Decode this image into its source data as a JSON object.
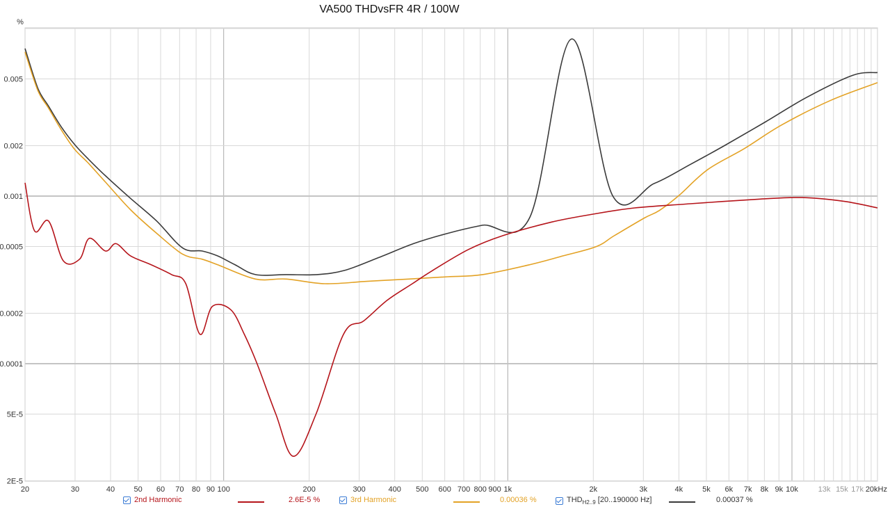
{
  "title": "VA500 THDvsFR 4R / 100W",
  "y_unit_label": "%",
  "colors": {
    "second_harmonic": "#b5141a",
    "third_harmonic": "#e3a225",
    "thd": "#3a3a3a",
    "grid": "#d9d9d9",
    "grid_major": "#c4c4c4",
    "checkbox": "#3a7bd5"
  },
  "legend": {
    "items": [
      {
        "label": "2nd Harmonic",
        "value": "2.6E-5 %",
        "checked": true,
        "color": "#b5141a"
      },
      {
        "label": "3rd Harmonic",
        "value": "0.00036 %",
        "checked": true,
        "color": "#e3a225"
      },
      {
        "label": "THD",
        "label_sub": "H2..9",
        "label_suffix": "[20..190000 Hz]",
        "value": "0.00037 %",
        "checked": true,
        "color": "#3a3a3a"
      }
    ]
  },
  "chart_data": {
    "type": "line",
    "title": "VA500 THDvsFR 4R / 100W",
    "xlabel": "Hz",
    "ylabel": "%",
    "xscale": "log",
    "yscale": "log",
    "xlim": [
      20,
      20000
    ],
    "ylim": [
      2e-05,
      0.01
    ],
    "grid": true,
    "legend_position": "bottom",
    "x_tick_labels": [
      {
        "f": 20,
        "label": "20"
      },
      {
        "f": 30,
        "label": "30"
      },
      {
        "f": 40,
        "label": "40"
      },
      {
        "f": 50,
        "label": "50"
      },
      {
        "f": 60,
        "label": "60"
      },
      {
        "f": 70,
        "label": "70"
      },
      {
        "f": 80,
        "label": "80"
      },
      {
        "f": 90,
        "label": "90"
      },
      {
        "f": 100,
        "label": "100"
      },
      {
        "f": 200,
        "label": "200"
      },
      {
        "f": 300,
        "label": "300"
      },
      {
        "f": 400,
        "label": "400"
      },
      {
        "f": 500,
        "label": "500"
      },
      {
        "f": 600,
        "label": "600"
      },
      {
        "f": 700,
        "label": "700"
      },
      {
        "f": 800,
        "label": "800"
      },
      {
        "f": 900,
        "label": "900"
      },
      {
        "f": 1000,
        "label": "1k"
      },
      {
        "f": 2000,
        "label": "2k"
      },
      {
        "f": 3000,
        "label": "3k"
      },
      {
        "f": 4000,
        "label": "4k"
      },
      {
        "f": 5000,
        "label": "5k"
      },
      {
        "f": 6000,
        "label": "6k"
      },
      {
        "f": 7000,
        "label": "7k"
      },
      {
        "f": 8000,
        "label": "8k"
      },
      {
        "f": 9000,
        "label": "9k"
      },
      {
        "f": 10000,
        "label": "10k"
      },
      {
        "f": 13000,
        "label": "13k",
        "dim": true
      },
      {
        "f": 15000,
        "label": "15k",
        "dim": true
      },
      {
        "f": 17000,
        "label": "17k",
        "dim": true
      },
      {
        "f": 20000,
        "label": "20kHz"
      }
    ],
    "y_tick_labels": [
      {
        "v": 0.005,
        "label": "0.005"
      },
      {
        "v": 0.002,
        "label": "0.002"
      },
      {
        "v": 0.001,
        "label": "0.001"
      },
      {
        "v": 0.0005,
        "label": "0.0005"
      },
      {
        "v": 0.0002,
        "label": "0.0002"
      },
      {
        "v": 0.0001,
        "label": "0.0001"
      },
      {
        "v": 5e-05,
        "label": "5E-5"
      },
      {
        "v": 2e-05,
        "label": "2E-5"
      }
    ],
    "series": [
      {
        "name": "THD H2..9 [20..190000 Hz]",
        "color": "#3a3a3a",
        "points": [
          [
            20,
            0.0076
          ],
          [
            22.2,
            0.00439
          ],
          [
            24.2,
            0.00344
          ],
          [
            26.9,
            0.00257
          ],
          [
            29.9,
            0.00203
          ],
          [
            33.2,
            0.00168
          ],
          [
            38.4,
            0.00132
          ],
          [
            47.0,
            0.00097
          ],
          [
            58.1,
            0.00071
          ],
          [
            71.8,
            0.00049
          ],
          [
            84.1,
            0.00047
          ],
          [
            95.1,
            0.00044
          ],
          [
            109.5,
            0.00039
          ],
          [
            129.4,
            0.00034
          ],
          [
            166.0,
            0.00034
          ],
          [
            213.1,
            0.00034
          ],
          [
            266.3,
            0.00036
          ],
          [
            352.0,
            0.00043
          ],
          [
            465.6,
            0.00052
          ],
          [
            615.6,
            0.0006
          ],
          [
            814.3,
            0.00067
          ],
          [
            1197,
            0.00075
          ],
          [
            1675,
            0.00866
          ],
          [
            2343,
            0.001
          ],
          [
            3279,
            0.00119
          ],
          [
            4373,
            0.00154
          ],
          [
            5784,
            0.002
          ],
          [
            8093,
            0.00278
          ],
          [
            11320,
            0.0039
          ],
          [
            16380,
            0.00526
          ],
          [
            20000,
            0.00546
          ]
        ]
      },
      {
        "name": "3rd Harmonic",
        "color": "#e3a225",
        "points": [
          [
            20,
            0.00725
          ],
          [
            22.2,
            0.00426
          ],
          [
            24.2,
            0.00335
          ],
          [
            26.9,
            0.00247
          ],
          [
            29.9,
            0.0019
          ],
          [
            33.2,
            0.00159
          ],
          [
            38.4,
            0.00121
          ],
          [
            47.0,
            0.00083
          ],
          [
            58.1,
            0.0006
          ],
          [
            71.8,
            0.00045
          ],
          [
            84.1,
            0.00042
          ],
          [
            95.1,
            0.00039
          ],
          [
            129.4,
            0.00032
          ],
          [
            166.0,
            0.00032
          ],
          [
            226.9,
            0.0003
          ],
          [
            319.3,
            0.00031
          ],
          [
            448.4,
            0.00032
          ],
          [
            615.6,
            0.00033
          ],
          [
            814.3,
            0.00034
          ],
          [
            1197,
            0.00039
          ],
          [
            1567,
            0.00044
          ],
          [
            2052,
            0.0005
          ],
          [
            2368,
            0.00058
          ],
          [
            3024,
            0.00074
          ],
          [
            3412,
            0.00082
          ],
          [
            4006,
            0.00101
          ],
          [
            5054,
            0.00144
          ],
          [
            6800,
            0.00192
          ],
          [
            9210,
            0.00266
          ],
          [
            13710,
            0.00373
          ],
          [
            20000,
            0.00475
          ]
        ]
      },
      {
        "name": "2nd Harmonic",
        "color": "#b5141a",
        "points": [
          [
            20,
            0.0012
          ],
          [
            21.6,
            0.00062
          ],
          [
            24.2,
            0.00071
          ],
          [
            27.3,
            0.00041
          ],
          [
            31.1,
            0.00042
          ],
          [
            33.7,
            0.00056
          ],
          [
            38.4,
            0.00047
          ],
          [
            41.8,
            0.00052
          ],
          [
            47.0,
            0.00044
          ],
          [
            55.5,
            0.00039
          ],
          [
            65.6,
            0.00034
          ],
          [
            73.6,
            0.0003
          ],
          [
            82.5,
            0.00015
          ],
          [
            91.3,
            0.00022
          ],
          [
            105.9,
            0.00021
          ],
          [
            118.2,
            0.00015
          ],
          [
            131.1,
            0.0001
          ],
          [
            152.6,
            5e-05
          ],
          [
            176.3,
            2.8e-05
          ],
          [
            211.4,
            5e-05
          ],
          [
            264.2,
            0.00015
          ],
          [
            311.1,
            0.00018
          ],
          [
            377.4,
            0.00024
          ],
          [
            461.3,
            0.0003
          ],
          [
            544.1,
            0.00036
          ],
          [
            727.0,
            0.00048
          ],
          [
            958.5,
            0.00058
          ],
          [
            1427,
            0.0007
          ],
          [
            1993,
            0.00078
          ],
          [
            2794,
            0.00085
          ],
          [
            4386,
            0.0009
          ],
          [
            7731,
            0.00096
          ],
          [
            10840,
            0.00098
          ],
          [
            15280,
            0.00093
          ],
          [
            20000,
            0.00085
          ]
        ]
      }
    ]
  }
}
